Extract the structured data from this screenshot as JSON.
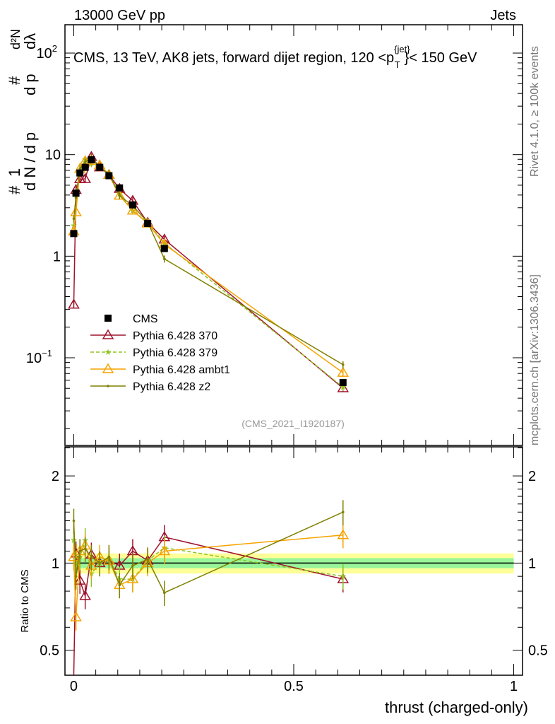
{
  "header": {
    "left": "13000 GeV pp",
    "right": "Jets"
  },
  "side_labels": {
    "rivet": "Rivet 4.1.0, ≥ 100k events",
    "mcplots": "mcplots.cern.ch [arXiv:1306.3436]"
  },
  "chart_data": {
    "type": "line",
    "title": "CMS, 13 TeV, AK8 jets, forward dijet region, 120 <p_T^{jet}< 150 GeV",
    "title_parts": {
      "pre": "CMS, 13 TeV, AK8 jets, forward dijet region, 120 <p",
      "sub": "T",
      "sup": "{jet}",
      "post": "}< 150 GeV"
    },
    "analysis_id": "(CMS_2021_I1920187)",
    "xlabel": "thrust (charged-only)",
    "ylabel": "1/N dN/dλ",
    "ylabel_parts": {
      "one": "1",
      "den": "d N / d p",
      "num": "d²N",
      "den2": "d p",
      "lam": "dλ",
      "hash": "#"
    },
    "ratio_ylabel": "Ratio to CMS",
    "xlim": [
      -0.02,
      1.02
    ],
    "ylim": [
      0.0137,
      190
    ],
    "yscale": "log",
    "ratio_ylim": [
      0.41,
      2.52
    ],
    "x_ticks": [
      "0",
      "0.5",
      "1"
    ],
    "x_tick_values": [
      0,
      0.5,
      1
    ],
    "y_ticks": [
      {
        "v": 100,
        "base": "10",
        "exp": "2"
      },
      {
        "v": 10,
        "base": "10",
        "exp": ""
      },
      {
        "v": 1,
        "base": "1",
        "exp": ""
      },
      {
        "v": 0.1,
        "base": "10",
        "exp": "−1"
      }
    ],
    "ratio_ticks": [
      "2",
      "1",
      "0.5"
    ],
    "ratio_tick_values": [
      2,
      1,
      0.5
    ],
    "x": [
      0.0,
      0.005,
      0.014,
      0.026,
      0.04,
      0.059,
      0.08,
      0.104,
      0.134,
      0.168,
      0.206,
      0.612
    ],
    "reference": {
      "name": "CMS",
      "color": "#000000",
      "values": [
        1.67,
        4.17,
        6.6,
        7.5,
        8.9,
        7.5,
        6.2,
        4.7,
        3.2,
        2.1,
        1.19,
        0.057
      ],
      "band_inner": 0.04,
      "band_outer": 0.08
    },
    "series": [
      {
        "name": "Pythia 6.428 370",
        "color": "#a0122c",
        "marker": "triangle",
        "dash": "",
        "ratio": [
          0.2,
          1.08,
          0.87,
          0.77,
          1.07,
          1.0,
          1.02,
          0.98,
          1.1,
          1.02,
          1.23,
          0.88
        ]
      },
      {
        "name": "Pythia 6.428 379",
        "color": "#8fc31f",
        "marker": "star",
        "dash": "5,3",
        "ratio": [
          1.2,
          1.0,
          1.05,
          1.2,
          0.92,
          1.0,
          1.03,
          0.88,
          0.88,
          1.02,
          1.13,
          0.9
        ]
      },
      {
        "name": "Pythia 6.428 ambt1",
        "color": "#f5a300",
        "marker": "triangle",
        "dash": "",
        "ratio": [
          1.05,
          0.65,
          1.1,
          1.15,
          0.98,
          1.05,
          1.02,
          0.84,
          0.88,
          1.0,
          1.1,
          1.25
        ]
      },
      {
        "name": "Pythia 6.428 z2",
        "color": "#808000",
        "marker": "dot",
        "dash": "",
        "ratio": [
          1.4,
          0.9,
          1.1,
          1.12,
          1.05,
          1.0,
          1.05,
          0.84,
          0.98,
          1.03,
          0.79,
          1.5
        ]
      }
    ]
  }
}
